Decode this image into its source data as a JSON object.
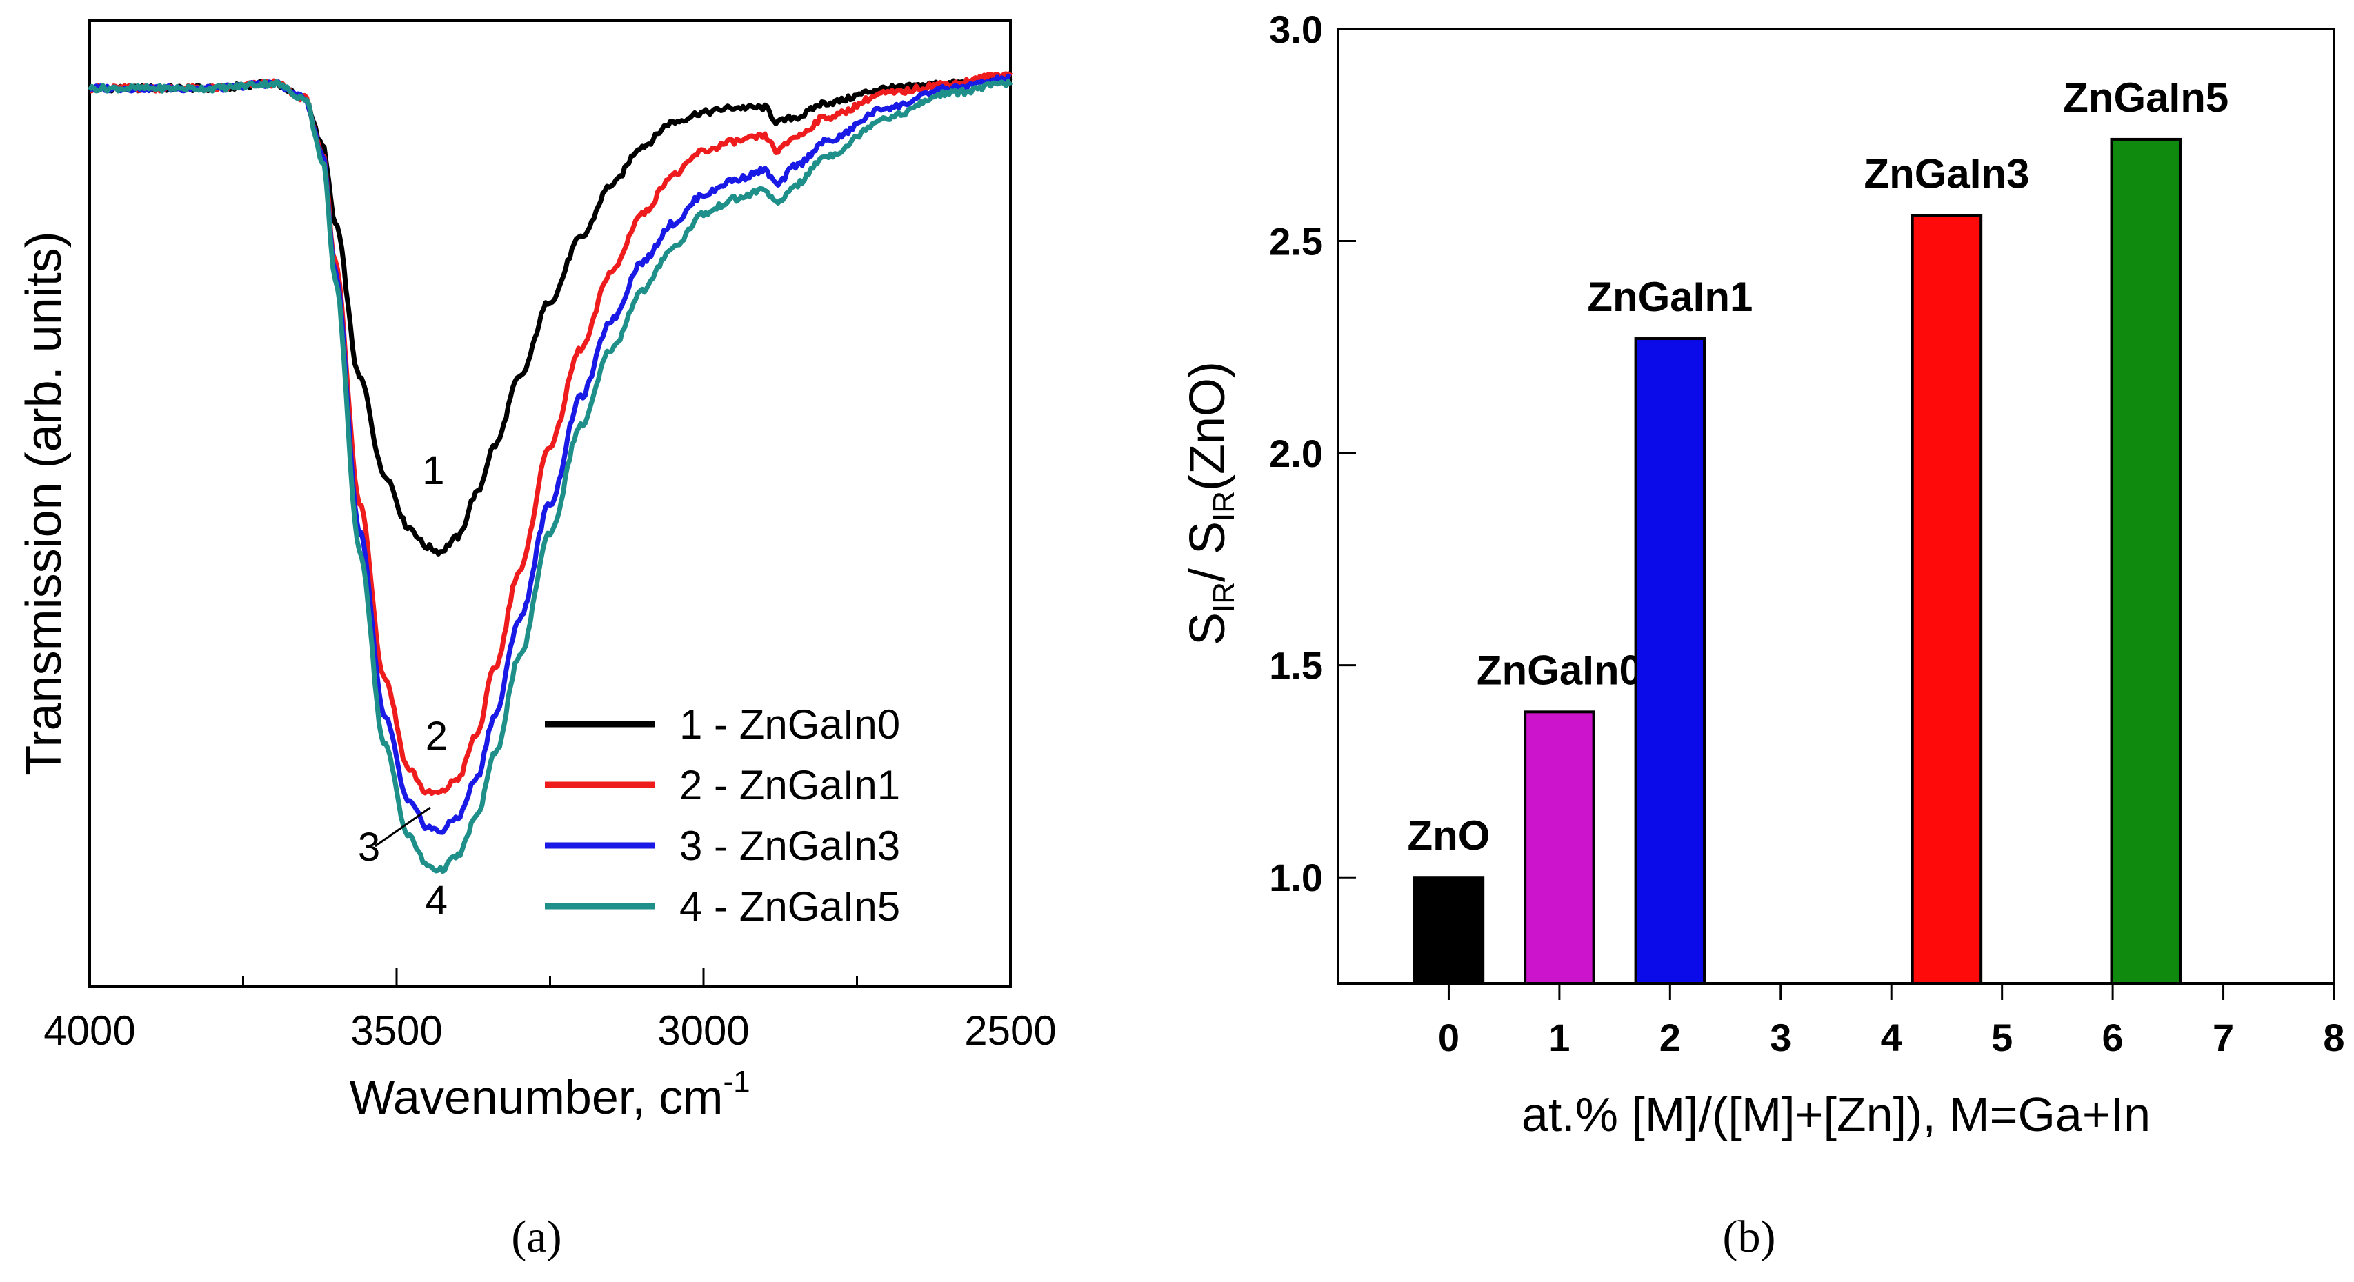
{
  "chart_data": [
    {
      "panel": "a",
      "type": "line",
      "xlabel": "Wavenumber, cm",
      "xlabel_sup": "-1",
      "ylabel": "Transmission (arb. units)",
      "xlim": [
        4000,
        2500
      ],
      "ylim": [
        0,
        1
      ],
      "x_ticks": [
        "4000",
        "3500",
        "3000",
        "2500"
      ],
      "x_tick_values": [
        4000,
        3500,
        3000,
        2500
      ],
      "minor_x_step": 250,
      "grid": false,
      "legend_position": "lower-right",
      "series": [
        {
          "name": "1 - ZnGaIn0",
          "marker": "1",
          "color": "#000000",
          "x": [
            4000,
            3900,
            3800,
            3700,
            3650,
            3620,
            3600,
            3560,
            3520,
            3480,
            3450,
            3430,
            3400,
            3370,
            3340,
            3300,
            3250,
            3200,
            3150,
            3100,
            3050,
            3000,
            2950,
            2900,
            2880,
            2850,
            2800,
            2700,
            2600,
            2500
          ],
          "y": [
            0.93,
            0.93,
            0.93,
            0.935,
            0.92,
            0.87,
            0.79,
            0.63,
            0.53,
            0.475,
            0.455,
            0.45,
            0.465,
            0.51,
            0.56,
            0.63,
            0.71,
            0.775,
            0.83,
            0.87,
            0.895,
            0.905,
            0.91,
            0.91,
            0.895,
            0.9,
            0.915,
            0.93,
            0.935,
            0.94
          ]
        },
        {
          "name": "2 - ZnGaIn1",
          "marker": "2",
          "color": "#ee1c1c",
          "x": [
            4000,
            3900,
            3800,
            3700,
            3650,
            3620,
            3600,
            3560,
            3520,
            3480,
            3450,
            3430,
            3400,
            3370,
            3340,
            3300,
            3250,
            3200,
            3150,
            3100,
            3050,
            3000,
            2950,
            2900,
            2880,
            2850,
            2800,
            2700,
            2600,
            2500
          ],
          "y": [
            0.93,
            0.93,
            0.93,
            0.935,
            0.92,
            0.86,
            0.75,
            0.5,
            0.32,
            0.225,
            0.2,
            0.2,
            0.215,
            0.26,
            0.33,
            0.43,
            0.56,
            0.66,
            0.74,
            0.8,
            0.84,
            0.865,
            0.875,
            0.88,
            0.865,
            0.88,
            0.9,
            0.925,
            0.935,
            0.945
          ]
        },
        {
          "name": "3 - ZnGaIn3",
          "marker": "3",
          "color": "#1a1ae6",
          "x": [
            4000,
            3900,
            3800,
            3700,
            3650,
            3620,
            3600,
            3560,
            3520,
            3480,
            3450,
            3430,
            3400,
            3370,
            3340,
            3300,
            3250,
            3200,
            3150,
            3100,
            3050,
            3000,
            2950,
            2900,
            2880,
            2850,
            2800,
            2700,
            2600,
            2500
          ],
          "y": [
            0.93,
            0.93,
            0.93,
            0.935,
            0.92,
            0.86,
            0.74,
            0.47,
            0.28,
            0.19,
            0.165,
            0.16,
            0.175,
            0.215,
            0.28,
            0.38,
            0.5,
            0.61,
            0.69,
            0.75,
            0.79,
            0.82,
            0.835,
            0.845,
            0.83,
            0.85,
            0.875,
            0.91,
            0.93,
            0.94
          ]
        },
        {
          "name": "4 - ZnGaIn5",
          "marker": "4",
          "color": "#1f8f8a",
          "x": [
            4000,
            3900,
            3800,
            3700,
            3650,
            3620,
            3600,
            3560,
            3520,
            3480,
            3450,
            3430,
            3400,
            3370,
            3340,
            3300,
            3250,
            3200,
            3150,
            3100,
            3050,
            3000,
            2950,
            2900,
            2880,
            2850,
            2800,
            2700,
            2600,
            2500
          ],
          "y": [
            0.93,
            0.93,
            0.93,
            0.935,
            0.92,
            0.855,
            0.73,
            0.45,
            0.25,
            0.155,
            0.125,
            0.12,
            0.135,
            0.175,
            0.24,
            0.34,
            0.47,
            0.58,
            0.66,
            0.72,
            0.765,
            0.8,
            0.815,
            0.825,
            0.81,
            0.83,
            0.86,
            0.9,
            0.925,
            0.935
          ]
        }
      ]
    },
    {
      "panel": "b",
      "type": "bar",
      "xlabel": "at.% [M]/([M]+[Zn]), M=Ga+In",
      "ylabel": {
        "s1": "S",
        "sub1": "IR",
        "mid": "/ S",
        "sub2": "IR",
        "end": "(ZnO)"
      },
      "xlim": [
        -1,
        8
      ],
      "ylim": [
        0.75,
        3.0
      ],
      "x_ticks": [
        "0",
        "1",
        "2",
        "3",
        "4",
        "5",
        "6",
        "7",
        "8"
      ],
      "x_tick_values": [
        0,
        1,
        2,
        3,
        4,
        5,
        6,
        7,
        8
      ],
      "y_ticks": [
        "1.0",
        "1.5",
        "2.0",
        "2.5",
        "3.0"
      ],
      "y_tick_values": [
        1.0,
        1.5,
        2.0,
        2.5,
        3.0
      ],
      "grid": false,
      "bars": [
        {
          "label": "ZnO",
          "x": 0,
          "value": 1.0,
          "color": "#000000"
        },
        {
          "label": "ZnGaIn0",
          "x": 1,
          "value": 1.39,
          "color": "#cc14cc"
        },
        {
          "label": "ZnGaIn1",
          "x": 2,
          "value": 2.27,
          "color": "#0b0bea"
        },
        {
          "label": "ZnGaIn3",
          "x": 4.5,
          "value": 2.56,
          "color": "#ff0a0a"
        },
        {
          "label": "ZnGaIn5",
          "x": 6.3,
          "value": 2.74,
          "color": "#0f8a0f"
        }
      ]
    }
  ],
  "panel_labels": {
    "a": "(a)",
    "b": "(b)"
  }
}
